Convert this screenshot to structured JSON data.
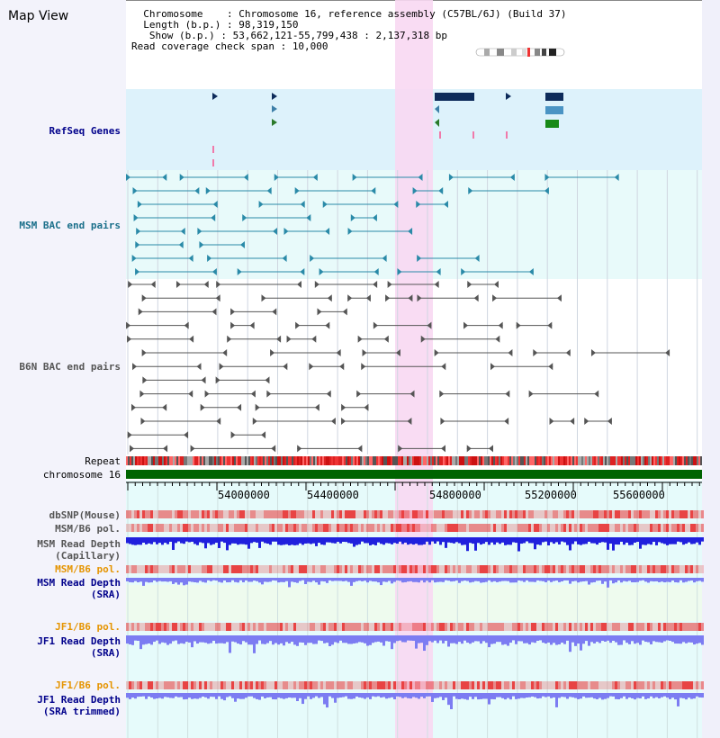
{
  "map_title": "Map View",
  "info": {
    "chromosome_label": "Chromosome",
    "chromosome_value": "Chromosome 16, reference assembly (C57BL/6J) (Build 37)",
    "length_label": "Length (b.p.)",
    "length_value": "98,319,150",
    "show_label": "Show (b.p.)",
    "show_value": "53,662,121-55,799,438 : 2,137,318 bp",
    "coverage_label": "Read coverage check span",
    "coverage_value": "10,000"
  },
  "tracks": {
    "refseq": "RefSeq Genes",
    "msm_bac": "MSM BAC end pairs",
    "b6n_bac": "B6N BAC end pairs",
    "repeat": "Repeat",
    "chromosome": "chromosome 16",
    "dbsnp": "dbSNP(Mouse)",
    "msm_b6_pol_1": "MSM/B6 pol.",
    "msm_read_depth_cap_1": "MSM Read Depth",
    "msm_read_depth_cap_2": "(Capillary)",
    "msm_b6_pol_2": "MSM/B6 pol.",
    "msm_read_depth_sra_1": "MSM Read Depth",
    "msm_read_depth_sra_2": "(SRA)",
    "jf1_b6_pol_1": "JF1/B6 pol.",
    "jf1_read_depth_sra_1": "JF1 Read Depth",
    "jf1_read_depth_sra_2": "(SRA)",
    "jf1_b6_pol_2": "JF1/B6 pol.",
    "jf1_read_depth_trim_1": "JF1 Read Depth",
    "jf1_read_depth_trim_2": "(SRA trimmed)"
  },
  "axis": {
    "ticks": [
      "54000000",
      "54400000",
      "54800000",
      "55200000",
      "55600000"
    ]
  },
  "colors": {
    "refseq_bg": "#ddf2fb",
    "bac_bg": "#e8fafa",
    "highlight": "#f8d8f2",
    "chromosome_bar": "#006400",
    "msm_track": "#2a8aa8",
    "b6n_track": "#555555",
    "depth_blue": "#2020dd",
    "depth_violet": "#7c7cf2",
    "pol_red": "#e83030"
  }
}
